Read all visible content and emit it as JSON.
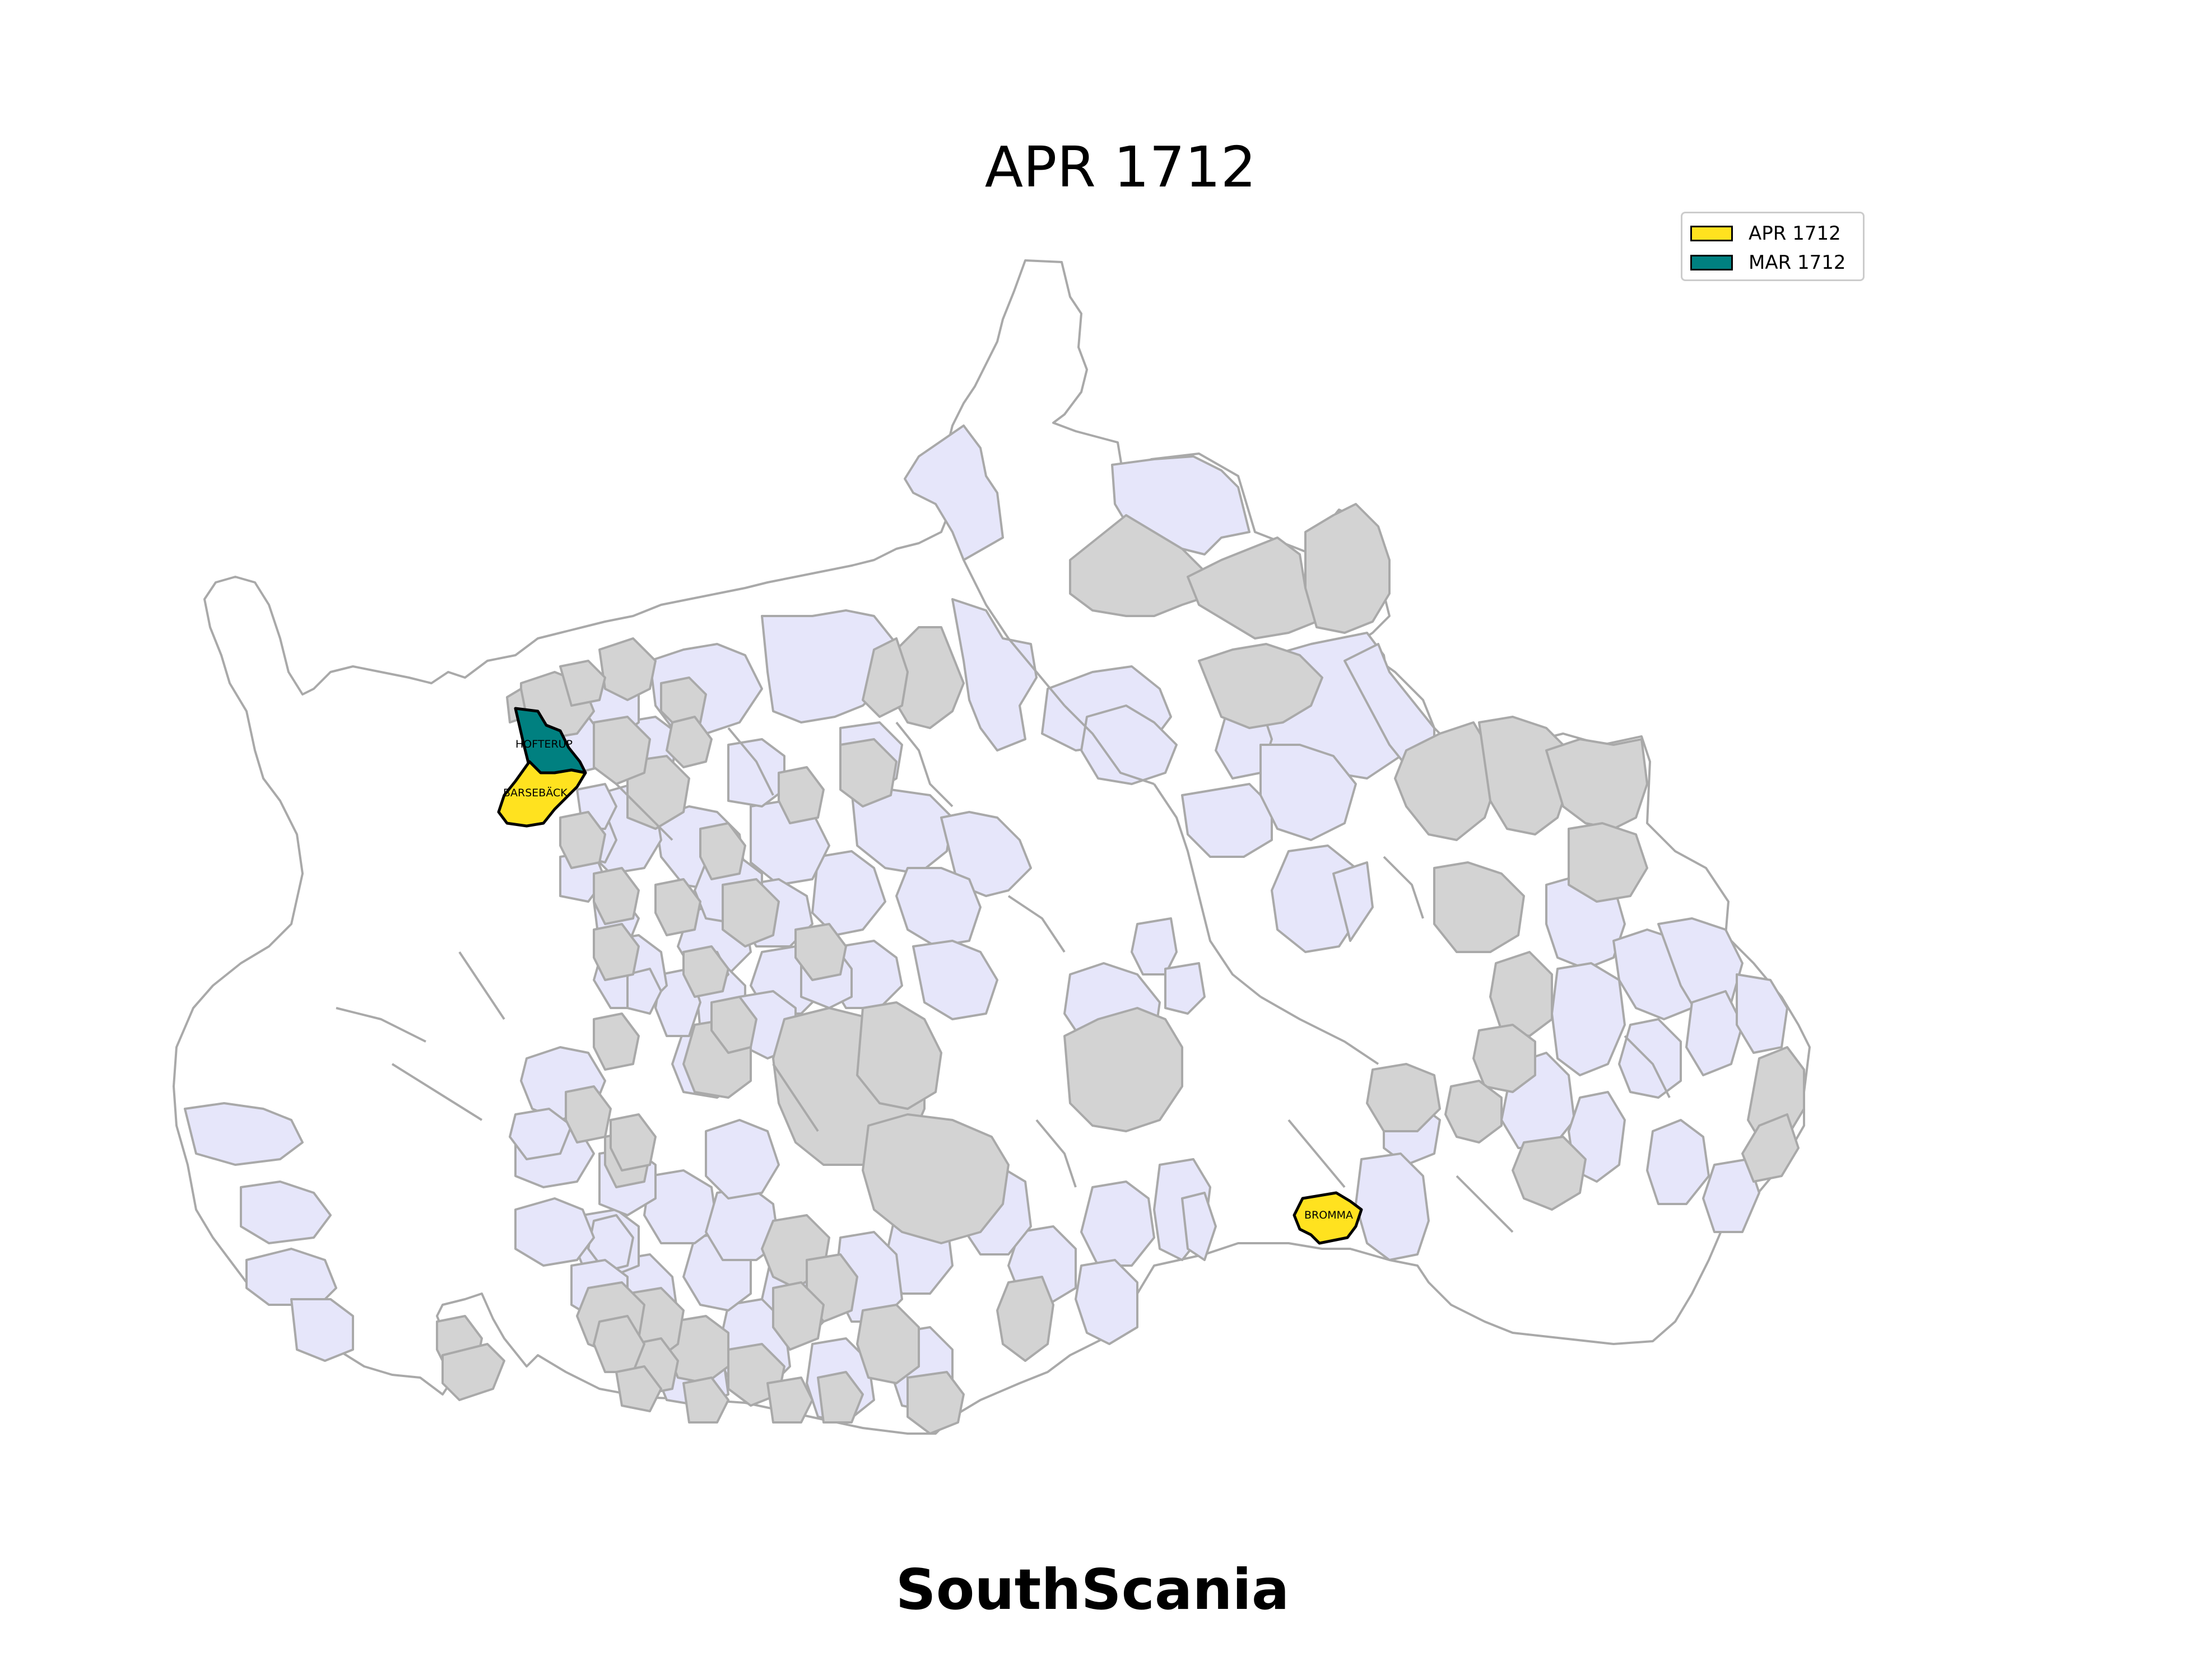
{
  "title": "APR 1712",
  "footer": "SouthScania",
  "colors": {
    "highlight_current": "#ffe21f",
    "highlight_previous": "#008080",
    "grey_region": "#d3d3d3",
    "lavender_region": "#e6e6fa",
    "white_region": "#ffffff",
    "border": "#a9a9a9"
  },
  "legend": [
    {
      "label": "APR 1712",
      "color": "#ffe21f"
    },
    {
      "label": "MAR 1712",
      "color": "#008080"
    }
  ],
  "highlighted_regions": [
    {
      "name": "HOFTERUP",
      "period": "MAR 1712"
    },
    {
      "name": "BARSEBÄCK",
      "period": "APR 1712"
    },
    {
      "name": "BROMMA",
      "period": "APR 1712"
    }
  ]
}
